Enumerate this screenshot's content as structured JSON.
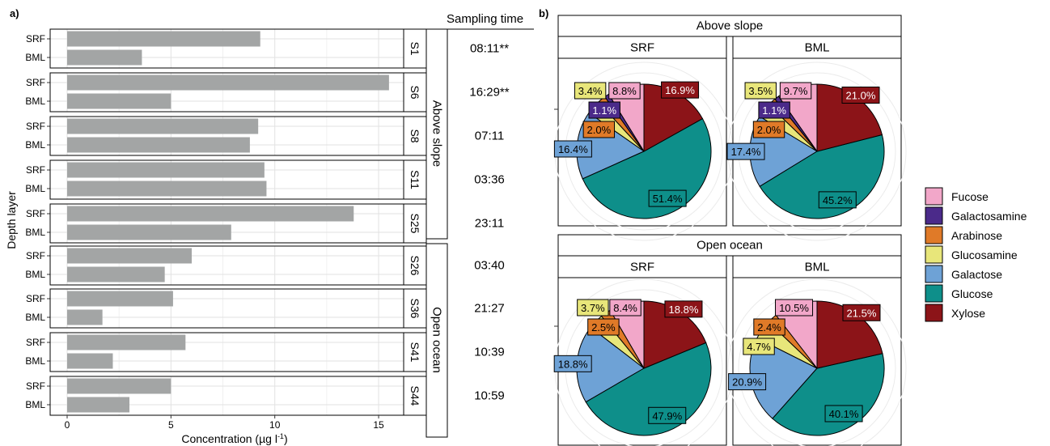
{
  "panel_a": {
    "label": "a)",
    "sampling_header": "Sampling time",
    "xlabel": "Concentration (µg l",
    "xlabel_sup": "-1",
    "xlabel_tail": ")",
    "ylabel": "Depth layer",
    "group_labels": [
      "Above slope",
      "Open ocean"
    ]
  },
  "panel_b": {
    "label": "b)",
    "group_titles": [
      "Above slope",
      "Open ocean"
    ],
    "layer_titles": [
      "SRF",
      "BML"
    ]
  },
  "legend": [
    {
      "label": "Fucose",
      "color": "#f2a7c9"
    },
    {
      "label": "Galactosamine",
      "color": "#4b2a8a"
    },
    {
      "label": "Arabinose",
      "color": "#e07a28"
    },
    {
      "label": "Glucosamine",
      "color": "#e8e67a"
    },
    {
      "label": "Galactose",
      "color": "#6ea2d6"
    },
    {
      "label": "Glucose",
      "color": "#0e8f8a"
    },
    {
      "label": "Xylose",
      "color": "#8c1418"
    }
  ],
  "chart_data": [
    {
      "type": "bar",
      "orientation": "horizontal",
      "xlabel": "Concentration (µg l-1)",
      "ylabel": "Depth layer",
      "xlim": [
        0,
        17
      ],
      "xticks": [
        0,
        5,
        10,
        15
      ],
      "grid": true,
      "bar_color": "#a3a5a5",
      "layers": [
        "SRF",
        "BML"
      ],
      "stations": [
        {
          "station": "S1",
          "group": "Above slope",
          "time": "08:11**",
          "SRF": 9.3,
          "BML": 3.6
        },
        {
          "station": "S6",
          "group": "Above slope",
          "time": "16:29**",
          "SRF": 15.5,
          "BML": 5.0
        },
        {
          "station": "S8",
          "group": "Above slope",
          "time": "07:11",
          "SRF": 9.2,
          "BML": 8.8
        },
        {
          "station": "S11",
          "group": "Above slope",
          "time": "03:36",
          "SRF": 9.5,
          "BML": 9.6
        },
        {
          "station": "S25",
          "group": "Above slope",
          "time": "23:11",
          "SRF": 13.8,
          "BML": 7.9
        },
        {
          "station": "S26",
          "group": "Open ocean",
          "time": "03:40",
          "SRF": 6.0,
          "BML": 4.7
        },
        {
          "station": "S36",
          "group": "Open ocean",
          "time": "21:27",
          "SRF": 5.1,
          "BML": 1.7
        },
        {
          "station": "S41",
          "group": "Open ocean",
          "time": "10:39",
          "SRF": 5.7,
          "BML": 2.2
        },
        {
          "station": "S44",
          "group": "Open ocean",
          "time": "10:59",
          "SRF": 5.0,
          "BML": 3.0
        }
      ]
    },
    {
      "type": "pie",
      "categories": [
        "Fucose",
        "Galactosamine",
        "Arabinose",
        "Glucosamine",
        "Galactose",
        "Glucose",
        "Xylose"
      ],
      "pies": [
        {
          "group": "Above slope",
          "layer": "SRF",
          "values": [
            8.8,
            1.1,
            2.0,
            3.4,
            16.4,
            51.4,
            16.9
          ],
          "labels": [
            "8.8%",
            "1.1%",
            "2.0%",
            "3.4%",
            "16.4%",
            "51.4%",
            "16.9%"
          ]
        },
        {
          "group": "Above slope",
          "layer": "BML",
          "values": [
            9.7,
            1.1,
            2.0,
            3.5,
            17.4,
            45.2,
            21.0
          ],
          "labels": [
            "9.7%",
            "1.1%",
            "2.0%",
            "3.5%",
            "17.4%",
            "45.2%",
            "21.0%"
          ]
        },
        {
          "group": "Open ocean",
          "layer": "SRF",
          "values": [
            8.4,
            0,
            2.5,
            3.7,
            18.8,
            47.9,
            18.8
          ],
          "labels": [
            "8.4%",
            "",
            "2.5%",
            "3.7%",
            "18.8%",
            "47.9%",
            "18.8%"
          ]
        },
        {
          "group": "Open ocean",
          "layer": "BML",
          "values": [
            10.5,
            0,
            2.4,
            4.7,
            20.9,
            40.1,
            21.5
          ],
          "labels": [
            "10.5%",
            "",
            "2.4%",
            "4.7%",
            "20.9%",
            "40.1%",
            "21.5%"
          ]
        }
      ]
    }
  ]
}
